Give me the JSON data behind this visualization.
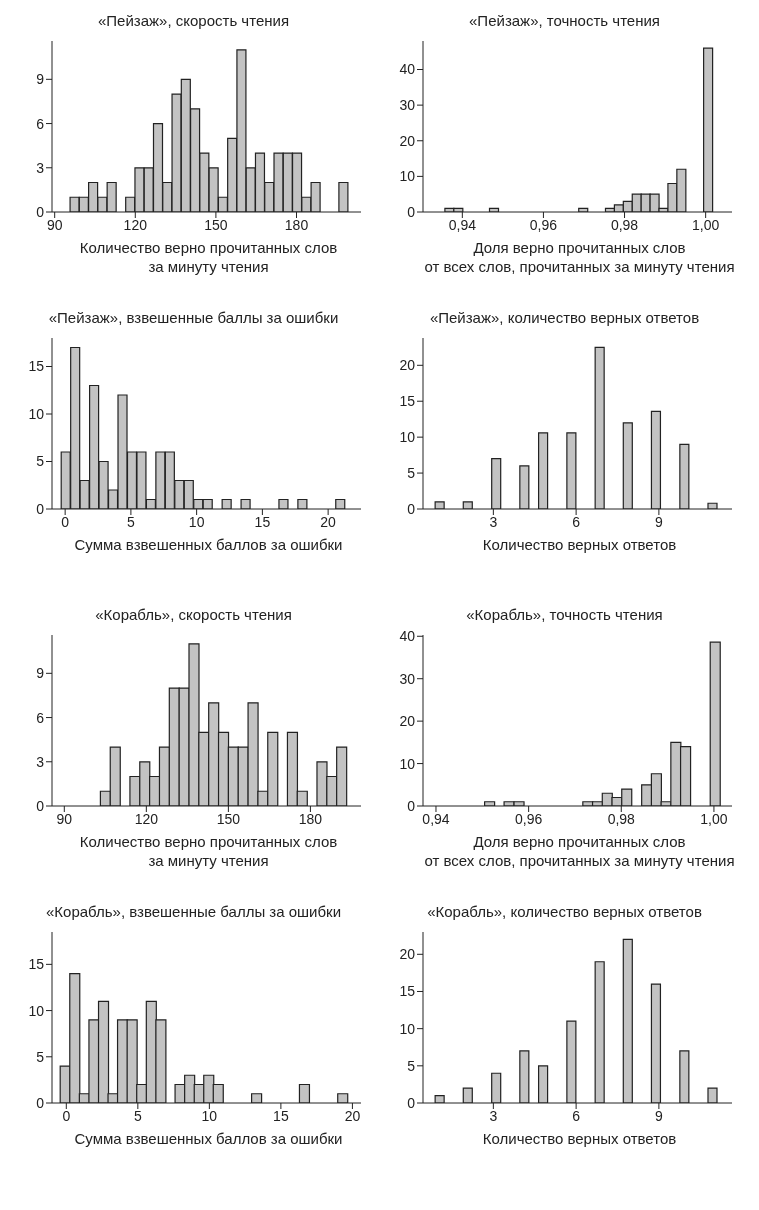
{
  "chart_data": [
    {
      "type": "histogram",
      "title": "«Пейзаж», скорость чтения",
      "xlabel": "Количество верно прочитанных слов\nза минуту чтения",
      "color": "#c3c3c3",
      "bins": [
        95.7,
        99.2,
        102.6,
        106.1,
        109.5,
        113.0,
        116.4,
        119.9,
        123.3,
        126.8,
        130.2,
        133.7,
        137.1,
        140.6,
        144.0,
        147.5,
        150.9,
        154.4,
        157.8,
        161.3,
        164.7,
        168.2,
        171.6,
        175.1,
        178.5,
        182.0,
        185.4,
        188.9,
        192.3,
        195.8,
        199.2
      ],
      "values": [
        1,
        1,
        2,
        1,
        2,
        0,
        1,
        3,
        3,
        6,
        2,
        8,
        9,
        7,
        4,
        3,
        1,
        5,
        11,
        3,
        4,
        2,
        4,
        4,
        4,
        1,
        2,
        0,
        0,
        2
      ],
      "xlim": [
        89,
        204
      ],
      "xticks": [
        90,
        120,
        150,
        180
      ],
      "ylim": [
        0,
        11.6
      ],
      "yticks": [
        0,
        3,
        6,
        9
      ]
    },
    {
      "type": "histogram",
      "title": "«Пейзаж», точность чтения",
      "xlabel": "Доля верно прочитанных слов\nот всех слов, прочитанных за минуту чтения",
      "color": "#c3c3c3",
      "bins": [
        0.9357,
        0.9379,
        0.9401,
        0.9423,
        0.9445,
        0.9467,
        0.9489,
        0.9511,
        0.9533,
        0.9555,
        0.9577,
        0.9599,
        0.9621,
        0.9643,
        0.9665,
        0.9687,
        0.9709,
        0.9731,
        0.9753,
        0.9775,
        0.9797,
        0.9819,
        0.9841,
        0.9863,
        0.9885,
        0.9907,
        0.9929,
        0.9951,
        0.9973,
        0.9995,
        1.0017
      ],
      "values": [
        1,
        1,
        0,
        0,
        0,
        1,
        0,
        0,
        0,
        0,
        0,
        0,
        0,
        0,
        0,
        1,
        0,
        0,
        1,
        2,
        3,
        5,
        5,
        5,
        1,
        8,
        12,
        0,
        0,
        46
      ],
      "xlim": [
        0.9303,
        1.0065
      ],
      "xticks": [
        {
          "value": 0.94,
          "label": "0,94"
        },
        {
          "value": 0.96,
          "label": "0,96"
        },
        {
          "value": 0.98,
          "label": "0,98"
        },
        {
          "value": 1.0,
          "label": "1,00"
        }
      ],
      "ylim": [
        0,
        48
      ],
      "yticks": [
        0,
        10,
        20,
        30,
        40
      ]
    },
    {
      "type": "histogram",
      "title": "«Пейзаж», взвешенные баллы за ошибки",
      "xlabel": "Сумма взвешенных баллов за ошибки",
      "color": "#c3c3c3",
      "bins": [
        -0.3,
        0.42,
        1.14,
        1.86,
        2.58,
        3.3,
        4.02,
        4.74,
        5.46,
        6.18,
        6.9,
        7.62,
        8.34,
        9.06,
        9.78,
        10.5,
        11.22,
        11.94,
        12.66,
        13.38,
        14.1,
        14.82,
        15.54,
        16.26,
        16.98,
        17.7,
        18.42,
        19.14,
        19.86,
        20.58,
        21.3
      ],
      "values": [
        6,
        17,
        3,
        13,
        5,
        2,
        12,
        6,
        6,
        1,
        6,
        6,
        3,
        3,
        1,
        1,
        0,
        1,
        0,
        1,
        0,
        0,
        0,
        1,
        0,
        1,
        0,
        0,
        0,
        1
      ],
      "xlim": [
        -1,
        22.5
      ],
      "xticks": [
        0,
        5,
        10,
        15,
        20
      ],
      "ylim": [
        0,
        18
      ],
      "yticks": [
        0,
        5,
        10,
        15
      ]
    },
    {
      "type": "histogram",
      "title": "«Пейзаж», количество верных ответов",
      "xlabel": "Количество верных ответов",
      "color": "#c3c3c3",
      "bins": [
        0.89,
        1.23,
        1.57,
        1.91,
        2.25,
        2.6,
        2.94,
        3.28,
        3.62,
        3.96,
        4.3,
        4.64,
        4.98,
        5.32,
        5.66,
        6.01,
        6.35,
        6.69,
        7.03,
        7.37,
        7.71,
        8.05,
        8.39,
        8.73,
        9.07,
        9.42,
        9.76,
        10.1,
        10.44,
        10.78,
        11.12
      ],
      "values": [
        1,
        0,
        0,
        1,
        0,
        0,
        7,
        0,
        0,
        6,
        0,
        10.6,
        0,
        0,
        10.6,
        0,
        0,
        22.5,
        0,
        0,
        12,
        0,
        0,
        13.6,
        0,
        0,
        9,
        0,
        0,
        0.8
      ],
      "xlim": [
        0.45,
        11.65
      ],
      "xticks": [
        3,
        6,
        9
      ],
      "ylim": [
        0,
        23.8
      ],
      "yticks": [
        0,
        5,
        10,
        15,
        20
      ]
    },
    {
      "type": "histogram",
      "title": "«Корабль», скорость чтения",
      "xlabel": "Количество верно прочитанных слов\nза минуту чтения",
      "color": "#c3c3c3",
      "bins": [
        103.2,
        106.8,
        110.4,
        114,
        117.6,
        121.2,
        124.8,
        128.4,
        132,
        135.6,
        139.2,
        142.8,
        146.4,
        150,
        153.6,
        157.2,
        160.8,
        164.4,
        168,
        171.6,
        175.2,
        178.8,
        182.4,
        186,
        189.6,
        193.2
      ],
      "values": [
        1,
        4,
        0,
        2,
        3,
        2,
        4,
        8,
        8,
        11,
        5,
        7,
        5,
        4,
        4,
        7,
        1,
        5,
        0,
        5,
        1,
        0,
        3,
        2,
        4
      ],
      "xlim": [
        85.5,
        198.5
      ],
      "xticks": [
        90,
        120,
        150,
        180
      ],
      "ylim": [
        0,
        11.6
      ],
      "yticks": [
        0,
        3,
        6,
        9
      ]
    },
    {
      "type": "histogram",
      "title": "«Корабль», точность чтения",
      "xlabel": "Доля верно прочитанных слов\nот всех слов, прочитанных за минуту чтения",
      "color": "#c3c3c3",
      "bins": [
        0.9505,
        0.9526,
        0.9547,
        0.9568,
        0.959,
        0.9611,
        0.9632,
        0.9653,
        0.9674,
        0.9695,
        0.9717,
        0.9738,
        0.9759,
        0.978,
        0.9801,
        0.9822,
        0.9844,
        0.9865,
        0.9886,
        0.9907,
        0.9928,
        0.9949,
        0.997,
        0.9992,
        1.0013
      ],
      "values": [
        1,
        0,
        1,
        1,
        0,
        0,
        0,
        0,
        0,
        0,
        1,
        1,
        3,
        2,
        4,
        0,
        5,
        7.6,
        1,
        15,
        14,
        0,
        0,
        38.6
      ],
      "xlim": [
        0.9372,
        1.0039
      ],
      "xticks": [
        {
          "value": 0.94,
          "label": "0,94"
        },
        {
          "value": 0.96,
          "label": "0,96"
        },
        {
          "value": 0.98,
          "label": "0,98"
        },
        {
          "value": 1.0,
          "label": "1,00"
        }
      ],
      "ylim": [
        0,
        40.3
      ],
      "yticks": [
        0,
        10,
        20,
        30,
        40
      ]
    },
    {
      "type": "histogram",
      "title": "«Корабль», взвешенные баллы за ошибки",
      "xlabel": "Сумма взвешенных баллов за ошибки",
      "color": "#c3c3c3",
      "bins": [
        -0.43,
        0.24,
        0.91,
        1.58,
        2.25,
        2.92,
        3.58,
        4.25,
        4.92,
        5.59,
        6.26,
        6.93,
        7.6,
        8.27,
        8.94,
        9.61,
        10.27,
        10.94,
        11.61,
        12.28,
        12.95,
        13.62,
        14.29,
        14.96,
        15.63,
        16.3,
        16.96,
        17.63,
        18.3,
        18.97,
        19.64
      ],
      "values": [
        4,
        14,
        1,
        9,
        11,
        1,
        9,
        9,
        2,
        11,
        9,
        0,
        2,
        3,
        2,
        3,
        2,
        0,
        0,
        0,
        1,
        0,
        0,
        0,
        0,
        2,
        0,
        0,
        0,
        1
      ],
      "xlim": [
        -1,
        20.6
      ],
      "xticks": [
        0,
        5,
        10,
        15,
        20
      ],
      "ylim": [
        0,
        18.5
      ],
      "yticks": [
        0,
        5,
        10,
        15
      ]
    },
    {
      "type": "histogram",
      "title": "«Корабль», количество верных ответов",
      "xlabel": "Количество верных ответов",
      "color": "#c3c3c3",
      "bins": [
        0.89,
        1.23,
        1.57,
        1.91,
        2.25,
        2.6,
        2.94,
        3.28,
        3.62,
        3.96,
        4.3,
        4.64,
        4.98,
        5.32,
        5.66,
        6.01,
        6.35,
        6.69,
        7.03,
        7.37,
        7.71,
        8.05,
        8.39,
        8.73,
        9.07,
        9.42,
        9.76,
        10.1,
        10.44,
        10.78,
        11.12
      ],
      "values": [
        1,
        0,
        0,
        2,
        0,
        0,
        4,
        0,
        0,
        7,
        0,
        5,
        0,
        0,
        11,
        0,
        0,
        19,
        0,
        0,
        22,
        0,
        0,
        16,
        0,
        0,
        7,
        0,
        0,
        2
      ],
      "xlim": [
        0.45,
        11.65
      ],
      "xticks": [
        3,
        6,
        9
      ],
      "ylim": [
        0,
        23
      ],
      "yticks": [
        0,
        5,
        10,
        15,
        20
      ]
    }
  ]
}
